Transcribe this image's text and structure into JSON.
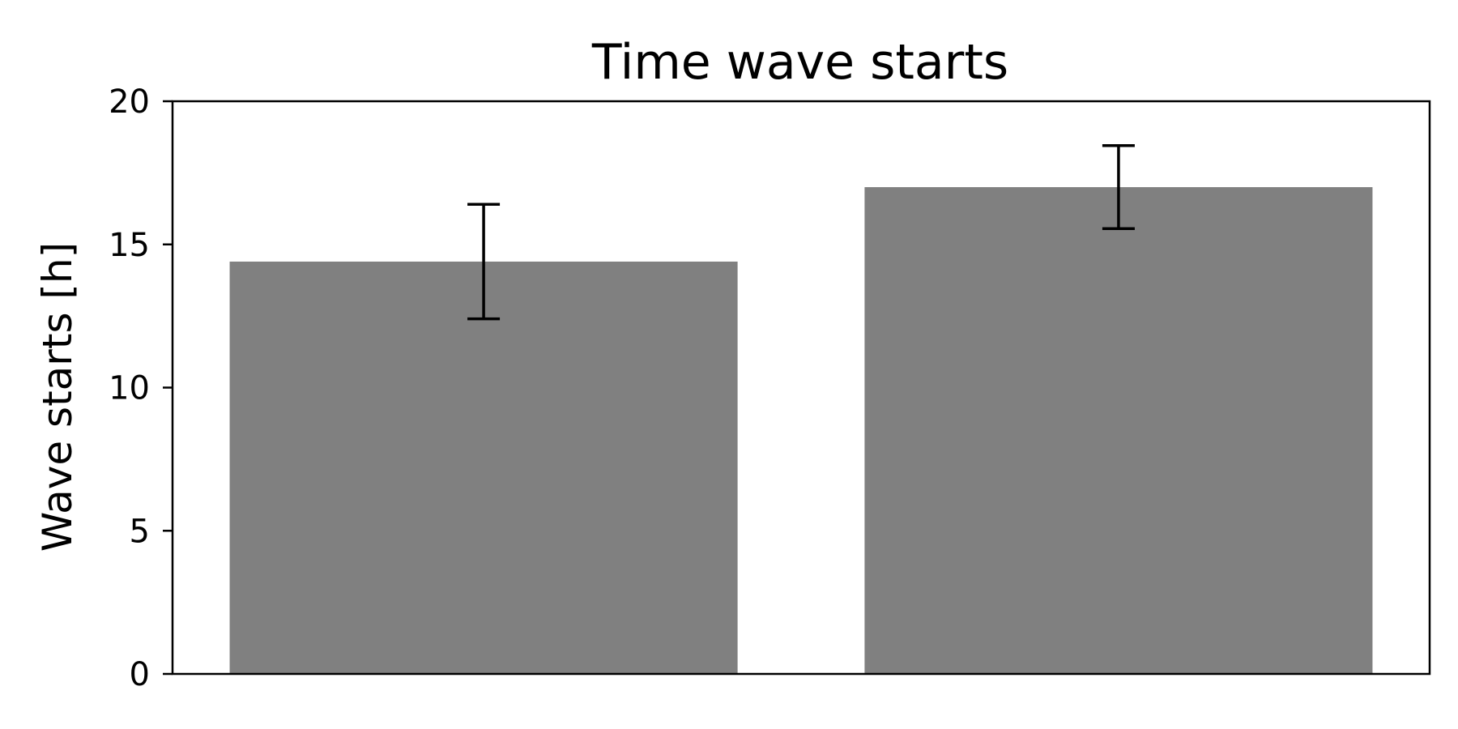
{
  "chart_data": {
    "type": "bar",
    "title": "Time wave starts",
    "xlabel": "",
    "ylabel": "Wave starts [h]",
    "ylim": [
      0,
      20
    ],
    "yticks": [
      0,
      5,
      10,
      15,
      20
    ],
    "categories": [
      "",
      ""
    ],
    "values": [
      14.4,
      17.0
    ],
    "errors": [
      2.0,
      1.45
    ],
    "grid": false,
    "legend": "none",
    "colors": {
      "bar": "#808080",
      "error_bar": "#000000",
      "axes": "#000000",
      "background": "#ffffff"
    }
  }
}
